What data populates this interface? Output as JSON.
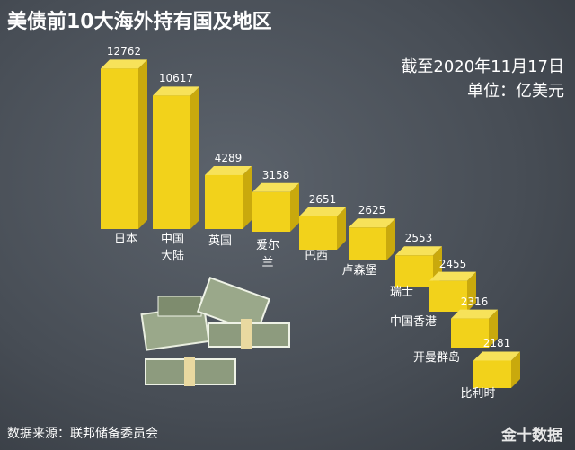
{
  "chart_data": {
    "type": "bar3d",
    "title": "美债前10大海外持有国及地区",
    "subtitle": [
      "截至2020年11月17日",
      "单位：亿美元"
    ],
    "categories": [
      "日本",
      "中国大陆",
      "英国",
      "爱尔兰",
      "巴西",
      "卢森堡",
      "瑞士",
      "中国香港",
      "开曼群岛",
      "比利时"
    ],
    "values": [
      12762,
      10617,
      4289,
      3158,
      2651,
      2625,
      2553,
      2455,
      2316,
      2181
    ],
    "color": "#f2d21b",
    "source": "数据来源：联邦储备委员会",
    "watermark": "金十数据"
  }
}
